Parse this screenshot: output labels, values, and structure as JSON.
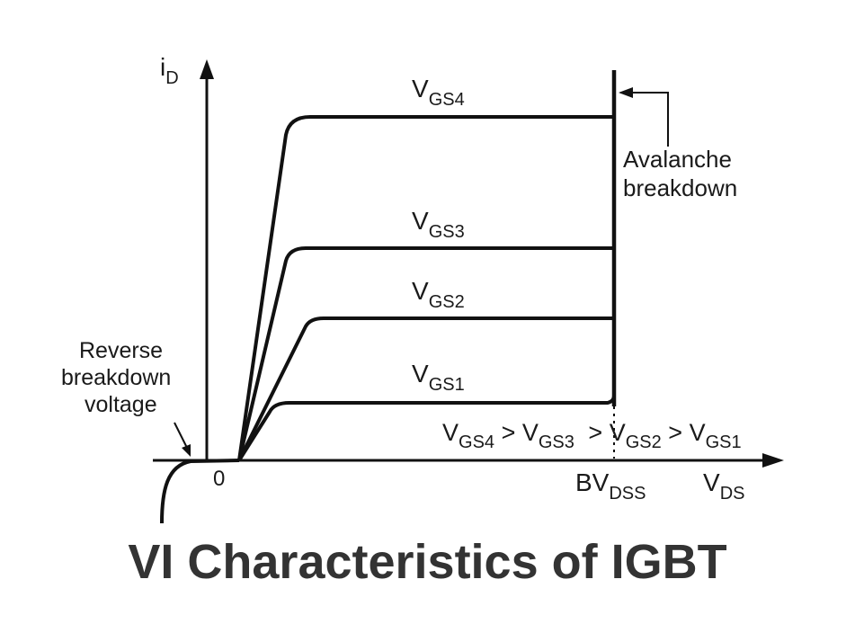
{
  "diagram": {
    "y_axis": {
      "symbol": "i",
      "subscript": "D"
    },
    "x_axis": {
      "symbol": "V",
      "subscript": "DS"
    },
    "origin_label": "0",
    "breakdown_voltage": {
      "symbol": "BV",
      "subscript": "DSS"
    },
    "curves": [
      {
        "symbol": "V",
        "subscript": "GS4"
      },
      {
        "symbol": "V",
        "subscript": "GS3"
      },
      {
        "symbol": "V",
        "subscript": "GS2"
      },
      {
        "symbol": "V",
        "subscript": "GS1"
      }
    ],
    "inequality": {
      "terms": [
        {
          "symbol": "V",
          "subscript": "GS4"
        },
        {
          "symbol": "V",
          "subscript": "GS3"
        },
        {
          "symbol": "V",
          "subscript": "GS2"
        },
        {
          "symbol": "V",
          "subscript": "GS1"
        }
      ],
      "operator": ">"
    },
    "annotations": {
      "avalanche_line1": "Avalanche",
      "avalanche_line2": "breakdown",
      "reverse_line1": "Reverse",
      "reverse_line2": "breakdown",
      "reverse_line3": "voltage"
    },
    "line_color": "#111111"
  },
  "caption": "VI Characteristics of IGBT"
}
